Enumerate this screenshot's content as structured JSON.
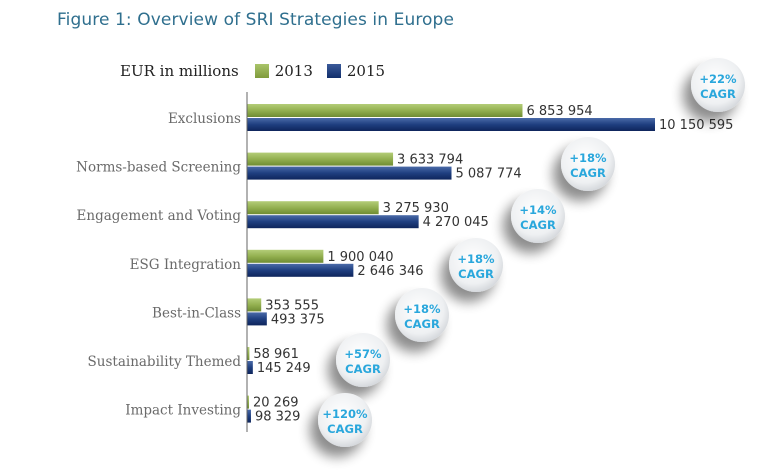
{
  "title": "Figure 1: Overview of SRI Strategies in Europe",
  "chart_data": {
    "type": "bar",
    "orientation": "horizontal",
    "title": "Figure 1: Overview of SRI Strategies in Europe",
    "unit_label": "EUR in millions",
    "categories": [
      "Exclusions",
      "Norms-based Screening",
      "Engagement and Voting",
      "ESG Integration",
      "Best-in-Class",
      "Sustainability Themed",
      "Impact Investing"
    ],
    "series": [
      {
        "name": "2013",
        "color": "#8fab4b",
        "values": [
          6853954,
          3633794,
          3275930,
          1900040,
          353555,
          58961,
          20269
        ],
        "labels": [
          "6 853 954",
          "3 633 794",
          "3 275 930",
          "1 900 040",
          "353 555",
          "58 961",
          "20 269"
        ]
      },
      {
        "name": "2015",
        "color": "#1d3d7e",
        "values": [
          10150595,
          5087774,
          4270045,
          2646346,
          493375,
          145249,
          98329
        ],
        "labels": [
          "10 150 595",
          "5 087 774",
          "4 270 045",
          "2 646 346",
          "493 375",
          "145 249",
          "98 329"
        ]
      }
    ],
    "annotations": [
      {
        "category": "Exclusions",
        "growth": "+22%",
        "label": "CAGR"
      },
      {
        "category": "Norms-based Screening",
        "growth": "+18%",
        "label": "CAGR"
      },
      {
        "category": "Engagement and Voting",
        "growth": "+14%",
        "label": "CAGR"
      },
      {
        "category": "ESG Integration",
        "growth": "+18%",
        "label": "CAGR"
      },
      {
        "category": "Best-in-Class",
        "growth": "+18%",
        "label": "CAGR"
      },
      {
        "category": "Sustainability Themed",
        "growth": "+57%",
        "label": "CAGR"
      },
      {
        "category": "Impact Investing",
        "growth": "+120%",
        "label": "CAGR"
      }
    ],
    "xlim": [
      0,
      10150595
    ],
    "grid": false,
    "legend_position": "top"
  }
}
